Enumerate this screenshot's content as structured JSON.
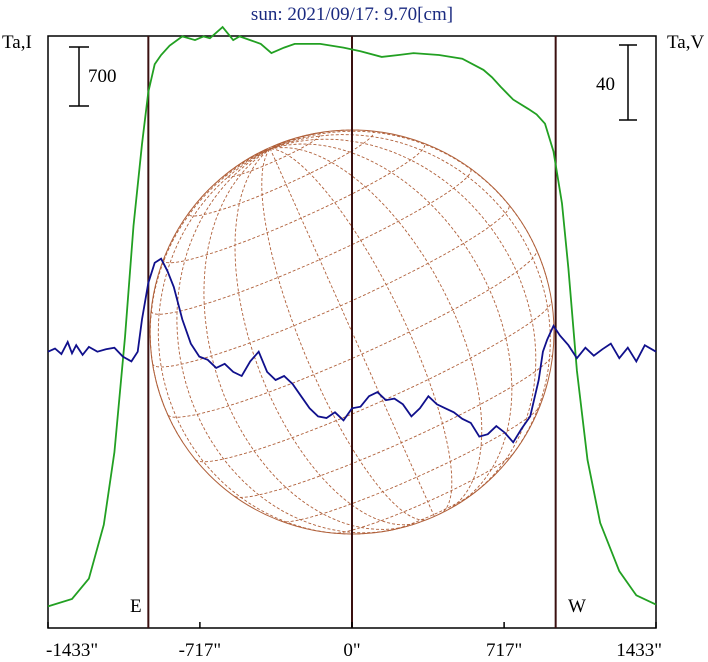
{
  "chart_data": {
    "type": "line",
    "title": "sun: 2021/09/17: 9.70[cm]",
    "left_axis_label": "Ta,I",
    "right_axis_label": "Ta,V",
    "left_scale_bar": "700",
    "right_scale_bar": "40",
    "limb_labels": {
      "east": "E",
      "west": "W"
    },
    "x_tick_labels": [
      "-1433\"",
      "-717\"",
      "0\"",
      "717\"",
      "1433\""
    ],
    "x_ticks": [
      -1433,
      -717,
      0,
      717,
      1433
    ],
    "xlim": [
      -1433,
      1433
    ],
    "vertical_lines": [
      -960,
      0,
      960
    ],
    "grid": false,
    "legend": "none",
    "colors": {
      "I": "#22a022",
      "V": "#10108c",
      "disk": "#b0603a",
      "frame": "#000000",
      "markers": "#3a1010",
      "title": "#1a2a80"
    },
    "series": [
      {
        "name": "I",
        "color": "#22a022",
        "ylim": [
          0,
          3000
        ],
        "x": [
          -1433,
          -1320,
          -1240,
          -1170,
          -1120,
          -1070,
          -1030,
          -990,
          -960,
          -930,
          -900,
          -860,
          -800,
          -740,
          -700,
          -670,
          -610,
          -560,
          -530,
          -480,
          -430,
          -380,
          -320,
          -270,
          -150,
          -40,
          40,
          140,
          220,
          290,
          410,
          520,
          620,
          660,
          700,
          760,
          830,
          870,
          910,
          950,
          990,
          1020,
          1060,
          1110,
          1170,
          1260,
          1340,
          1433
        ],
        "y": [
          30,
          70,
          180,
          470,
          860,
          1480,
          2080,
          2520,
          2800,
          2950,
          3000,
          3050,
          3100,
          3080,
          3100,
          3090,
          3150,
          3080,
          3100,
          3080,
          3060,
          3010,
          3040,
          3060,
          3060,
          3040,
          3020,
          2990,
          3000,
          3010,
          3000,
          2980,
          2920,
          2880,
          2830,
          2760,
          2710,
          2680,
          2630,
          2480,
          2200,
          1850,
          1300,
          820,
          480,
          220,
          90,
          40
        ]
      },
      {
        "name": "V",
        "color": "#10108c",
        "ylim": [
          -270,
          200
        ],
        "x": [
          -1433,
          -1400,
          -1370,
          -1340,
          -1320,
          -1300,
          -1270,
          -1240,
          -1200,
          -1160,
          -1120,
          -1080,
          -1040,
          -1010,
          -990,
          -960,
          -930,
          -900,
          -870,
          -840,
          -800,
          -760,
          -720,
          -680,
          -640,
          -600,
          -560,
          -520,
          -480,
          -440,
          -400,
          -360,
          -320,
          -280,
          -240,
          -200,
          -160,
          -120,
          -80,
          -40,
          0,
          40,
          80,
          120,
          160,
          200,
          240,
          280,
          320,
          360,
          400,
          440,
          480,
          520,
          560,
          600,
          640,
          680,
          720,
          760,
          800,
          840,
          880,
          900,
          920,
          950,
          980,
          1020,
          1060,
          1100,
          1140,
          1180,
          1220,
          1260,
          1300,
          1340,
          1380,
          1433
        ],
        "y": [
          0,
          4,
          -3,
          12,
          -2,
          8,
          -4,
          6,
          0,
          3,
          5,
          -6,
          -12,
          0,
          40,
          85,
          110,
          115,
          100,
          80,
          40,
          10,
          -6,
          -10,
          -20,
          -15,
          -25,
          -30,
          -12,
          0,
          -25,
          -35,
          -30,
          -40,
          -55,
          -70,
          -80,
          -82,
          -75,
          -85,
          -70,
          -68,
          -55,
          -50,
          -60,
          -58,
          -65,
          -80,
          -70,
          -55,
          -65,
          -70,
          -75,
          -83,
          -88,
          -105,
          -102,
          -92,
          -100,
          -112,
          -95,
          -80,
          -35,
          0,
          15,
          32,
          20,
          8,
          -8,
          5,
          -5,
          3,
          10,
          -8,
          5,
          -12,
          8,
          0
        ]
      }
    ]
  }
}
